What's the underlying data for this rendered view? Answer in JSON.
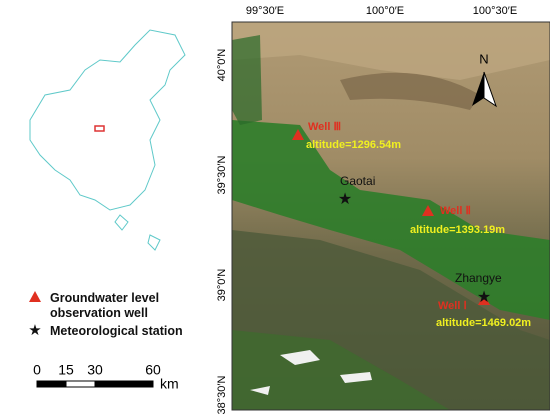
{
  "map": {
    "top_labels": [
      "99°30′E",
      "100°0′E",
      "100°30′E"
    ],
    "left_labels": [
      "40°0′N",
      "39°30′N",
      "39°0′N",
      "38°30′N"
    ],
    "north": "N",
    "sites": [
      {
        "name": "Well Ⅲ",
        "altitude": "altitude=1296.54m"
      },
      {
        "name": "Well Ⅱ",
        "altitude": "altitude=1393.19m"
      },
      {
        "name": "Well Ⅰ",
        "altitude": "altitude=1469.02m"
      }
    ],
    "stations": [
      "Gaotai",
      "Zhangye"
    ],
    "legend": [
      "Groundwater level observation well",
      "Meteorological station"
    ],
    "scale": {
      "labels": [
        "0",
        "15",
        "30",
        "60"
      ],
      "unit": "km"
    }
  }
}
